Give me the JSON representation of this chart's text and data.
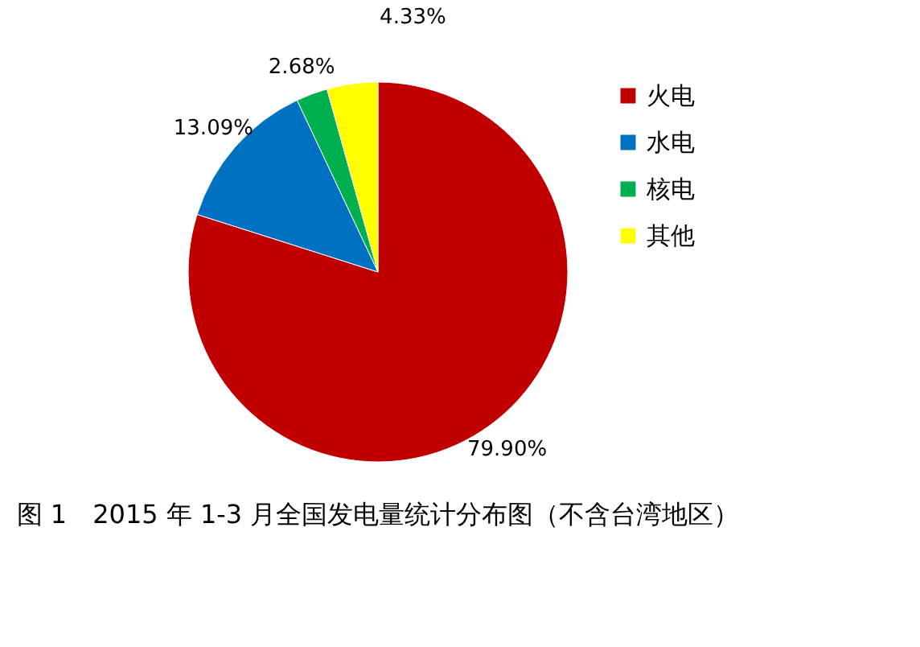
{
  "chart_data": {
    "type": "pie",
    "title": "图 1　2015 年 1-3 月全国发电量统计分布图（不含台湾地区）",
    "categories": [
      "火电",
      "水电",
      "核电",
      "其他"
    ],
    "values": [
      79.9,
      13.09,
      2.68,
      4.33
    ],
    "colors": [
      "#c00000",
      "#0070c0",
      "#00b050",
      "#ffff00"
    ],
    "value_labels": [
      "79.90%",
      "13.09%",
      "2.68%",
      "4.33%"
    ],
    "legend": "top right"
  }
}
